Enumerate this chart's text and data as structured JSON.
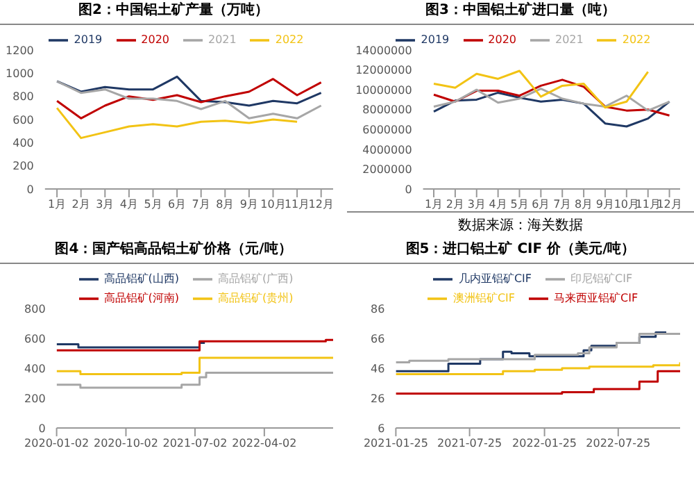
{
  "chart_data": [
    {
      "type": "line",
      "title": "图2：中国铝土矿产量（万吨）",
      "categories": [
        "1月",
        "2月",
        "3月",
        "4月",
        "5月",
        "6月",
        "7月",
        "8月",
        "9月",
        "10月",
        "11月",
        "12月"
      ],
      "ylim": [
        0,
        1200
      ],
      "yticks": [
        0,
        200,
        400,
        600,
        800,
        1000,
        1200
      ],
      "legend": "top",
      "marker": "none",
      "series": [
        {
          "name": "2019",
          "color": "#1f3864",
          "values": [
            930,
            840,
            880,
            860,
            860,
            970,
            760,
            750,
            720,
            760,
            740,
            830
          ]
        },
        {
          "name": "2020",
          "color": "#c00000",
          "values": [
            760,
            610,
            720,
            800,
            770,
            810,
            750,
            800,
            840,
            950,
            810,
            920
          ]
        },
        {
          "name": "2021",
          "color": "#a6a6a6",
          "values": [
            930,
            830,
            860,
            780,
            780,
            760,
            690,
            760,
            610,
            650,
            610,
            720
          ]
        },
        {
          "name": "2022",
          "color": "#f2c314",
          "values": [
            700,
            440,
            490,
            540,
            560,
            540,
            580,
            590,
            570,
            600,
            580,
            null
          ]
        }
      ]
    },
    {
      "type": "line",
      "title": "图3：中国铝土矿进口量（吨）",
      "categories": [
        "1月",
        "2月",
        "3月",
        "4月",
        "5月",
        "6月",
        "7月",
        "8月",
        "9月",
        "10月",
        "11月",
        "12月"
      ],
      "ylim": [
        0,
        14000000
      ],
      "yticks": [
        0,
        2000000,
        4000000,
        6000000,
        8000000,
        10000000,
        12000000,
        14000000
      ],
      "legend": "top",
      "marker": "none",
      "annotations": [
        "数据来源：海关数据"
      ],
      "series": [
        {
          "name": "2019",
          "color": "#1f3864",
          "values": [
            7800000,
            8900000,
            9000000,
            9700000,
            9200000,
            8800000,
            9000000,
            8600000,
            6600000,
            6300000,
            7100000,
            8800000
          ]
        },
        {
          "name": "2020",
          "color": "#c00000",
          "values": [
            9500000,
            8800000,
            9900000,
            9900000,
            9400000,
            10400000,
            11000000,
            10300000,
            8300000,
            7900000,
            8000000,
            7400000
          ]
        },
        {
          "name": "2021",
          "color": "#a6a6a6",
          "values": [
            8300000,
            8800000,
            10000000,
            8700000,
            9100000,
            10100000,
            9100000,
            8600000,
            8300000,
            9400000,
            7900000,
            8800000
          ]
        },
        {
          "name": "2022",
          "color": "#f2c314",
          "values": [
            10600000,
            10200000,
            11600000,
            11100000,
            11900000,
            9300000,
            10400000,
            10600000,
            8200000,
            8800000,
            11800000,
            null
          ]
        }
      ]
    },
    {
      "type": "step",
      "title": "图4：国产铝高品铝土矿价格（元/吨）",
      "xlim": [
        "2020-01-02",
        "2022-12-30"
      ],
      "xticks": [
        "2020-01-02",
        "2020-10-02",
        "2021-07-02",
        "2022-04-02"
      ],
      "ylim": [
        0,
        800
      ],
      "yticks": [
        0,
        200,
        400,
        600,
        800
      ],
      "legend": "top",
      "marker": "none",
      "series": [
        {
          "name": "高品铝矿(山西)",
          "color": "#1f3864",
          "x": [
            "2020-01-02",
            "2020-03-28",
            "2021-07-20",
            "2021-08-10"
          ],
          "values": [
            560,
            540,
            570,
            570
          ]
        },
        {
          "name": "高品铝矿(河南)",
          "color": "#c00000",
          "x": [
            "2020-01-02",
            "2021-07-20",
            "2022-12-01",
            "2022-12-30"
          ],
          "values": [
            520,
            580,
            590,
            590
          ]
        },
        {
          "name": "高品铝矿(广西)",
          "color": "#a6a6a6",
          "x": [
            "2020-01-02",
            "2020-04-05",
            "2021-05-10",
            "2021-07-20",
            "2021-08-15",
            "2022-12-30"
          ],
          "values": [
            290,
            270,
            290,
            340,
            370,
            370
          ]
        },
        {
          "name": "高品铝矿(贵州)",
          "color": "#f2c314",
          "x": [
            "2020-01-02",
            "2020-04-05",
            "2021-05-10",
            "2021-07-20",
            "2022-12-30"
          ],
          "values": [
            380,
            360,
            370,
            470,
            470
          ]
        }
      ]
    },
    {
      "type": "step",
      "title": "图5：进口铝土矿 CIF 价（美元/吨）",
      "xlim": [
        "2021-01-25",
        "2022-12-24"
      ],
      "xticks": [
        "2021-01-25",
        "2021-07-25",
        "2022-01-25",
        "2022-07-25"
      ],
      "ylim": [
        6,
        86
      ],
      "yticks": [
        6,
        26,
        46,
        66,
        86
      ],
      "legend": "top",
      "marker": "none",
      "series": [
        {
          "name": "几内亚铝矿CIF",
          "color": "#1f3864",
          "x": [
            "2021-01-25",
            "2021-06-03",
            "2021-08-20",
            "2021-10-15",
            "2021-11-05",
            "2021-12-19",
            "2022-05-01",
            "2022-05-20",
            "2022-07-21",
            "2022-09-15",
            "2022-10-25",
            "2022-11-20"
          ],
          "values": [
            44,
            49,
            52,
            57,
            56,
            54,
            58,
            61,
            63,
            67,
            70,
            70
          ]
        },
        {
          "name": "马来西亚铝矿CIF",
          "color": "#c00000",
          "x": [
            "2021-01-25",
            "2022-03-09",
            "2022-05-26",
            "2022-09-15",
            "2022-10-30",
            "2022-12-24"
          ],
          "values": [
            29,
            30,
            32,
            37,
            44,
            44
          ]
        },
        {
          "name": "印尼铝矿CIF",
          "color": "#a6a6a6",
          "x": [
            "2021-01-25",
            "2021-02-27",
            "2021-06-03",
            "2022-01-01",
            "2022-04-17",
            "2022-05-15",
            "2022-07-21",
            "2022-09-15",
            "2022-12-24"
          ],
          "values": [
            50,
            51,
            52,
            55,
            56,
            60,
            63,
            69,
            69
          ]
        },
        {
          "name": "澳洲铝矿CIF",
          "color": "#f2c314",
          "x": [
            "2021-01-25",
            "2021-10-15",
            "2022-01-01",
            "2022-03-09",
            "2022-05-15",
            "2022-10-19",
            "2022-12-24"
          ],
          "values": [
            42,
            44,
            45,
            46,
            47,
            48,
            50
          ]
        }
      ]
    }
  ]
}
